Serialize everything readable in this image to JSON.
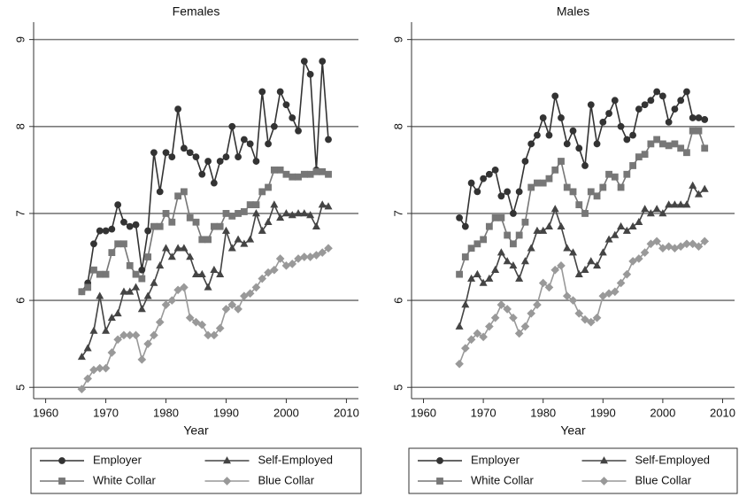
{
  "chart_data": [
    {
      "type": "line",
      "title": "Females",
      "xlabel": "Year",
      "x": [
        1966,
        1967,
        1968,
        1969,
        1970,
        1971,
        1972,
        1973,
        1974,
        1975,
        1976,
        1977,
        1978,
        1979,
        1980,
        1981,
        1982,
        1983,
        1984,
        1985,
        1986,
        1987,
        1988,
        1989,
        1990,
        1991,
        1992,
        1993,
        1994,
        1995,
        1996,
        1997,
        1998,
        1999,
        2000,
        2001,
        2002,
        2003,
        2004,
        2005,
        2006,
        2007
      ],
      "xlim": [
        1958,
        2012
      ],
      "xticks": [
        1960,
        1970,
        1980,
        1990,
        2000,
        2010
      ],
      "ylim": [
        4.87,
        9.2
      ],
      "yticks": [
        5,
        6,
        7,
        8,
        9
      ],
      "grid": true,
      "series": [
        {
          "name": "Employer",
          "color": "#333333",
          "marker": "circle",
          "values": [
            6.1,
            6.2,
            6.65,
            6.8,
            6.8,
            6.82,
            7.1,
            6.9,
            6.85,
            6.87,
            6.35,
            6.8,
            7.7,
            7.25,
            7.7,
            7.65,
            8.2,
            7.75,
            7.7,
            7.65,
            7.45,
            7.6,
            7.35,
            7.6,
            7.65,
            8.0,
            7.65,
            7.85,
            7.8,
            7.6,
            8.4,
            7.8,
            8.0,
            8.4,
            8.25,
            8.1,
            7.95,
            8.75,
            8.6,
            7.5,
            8.75,
            7.85
          ]
        },
        {
          "name": "Self-Employed",
          "color": "#444444",
          "marker": "triangle",
          "values": [
            5.35,
            5.45,
            5.65,
            6.05,
            5.65,
            5.8,
            5.85,
            6.1,
            6.1,
            6.15,
            5.9,
            6.05,
            6.2,
            6.4,
            6.6,
            6.5,
            6.6,
            6.6,
            6.5,
            6.3,
            6.3,
            6.15,
            6.35,
            6.3,
            6.8,
            6.6,
            6.7,
            6.65,
            6.7,
            7.0,
            6.8,
            6.9,
            7.1,
            6.95,
            7.0,
            6.98,
            7.0,
            7.0,
            6.98,
            6.85,
            7.1,
            7.08
          ]
        },
        {
          "name": "White Collar",
          "color": "#777777",
          "marker": "square",
          "values": [
            6.1,
            6.15,
            6.35,
            6.3,
            6.3,
            6.55,
            6.65,
            6.65,
            6.4,
            6.3,
            6.25,
            6.5,
            6.85,
            6.85,
            7.0,
            6.9,
            7.2,
            7.25,
            6.95,
            6.9,
            6.7,
            6.7,
            6.85,
            6.85,
            7.0,
            6.97,
            7.0,
            7.02,
            7.1,
            7.1,
            7.25,
            7.3,
            7.5,
            7.5,
            7.45,
            7.42,
            7.42,
            7.45,
            7.45,
            7.48,
            7.48,
            7.45
          ]
        },
        {
          "name": "Blue Collar",
          "color": "#999999",
          "marker": "diamond",
          "values": [
            4.98,
            5.1,
            5.2,
            5.22,
            5.22,
            5.4,
            5.55,
            5.6,
            5.6,
            5.6,
            5.32,
            5.5,
            5.6,
            5.75,
            5.95,
            6.0,
            6.12,
            6.15,
            5.8,
            5.75,
            5.72,
            5.6,
            5.6,
            5.68,
            5.9,
            5.95,
            5.9,
            6.05,
            6.08,
            6.15,
            6.25,
            6.32,
            6.35,
            6.48,
            6.4,
            6.42,
            6.48,
            6.5,
            6.5,
            6.52,
            6.55,
            6.6
          ]
        }
      ]
    },
    {
      "type": "line",
      "title": "Males",
      "xlabel": "Year",
      "x": [
        1966,
        1967,
        1968,
        1969,
        1970,
        1971,
        1972,
        1973,
        1974,
        1975,
        1976,
        1977,
        1978,
        1979,
        1980,
        1981,
        1982,
        1983,
        1984,
        1985,
        1986,
        1987,
        1988,
        1989,
        1990,
        1991,
        1992,
        1993,
        1994,
        1995,
        1996,
        1997,
        1998,
        1999,
        2000,
        2001,
        2002,
        2003,
        2004,
        2005,
        2006,
        2007
      ],
      "xlim": [
        1958,
        2012
      ],
      "xticks": [
        1960,
        1970,
        1980,
        1990,
        2000,
        2010
      ],
      "ylim": [
        4.87,
        9.2
      ],
      "yticks": [
        5,
        6,
        7,
        8,
        9
      ],
      "grid": true,
      "series": [
        {
          "name": "Employer",
          "color": "#333333",
          "marker": "circle",
          "values": [
            6.95,
            6.85,
            7.35,
            7.25,
            7.4,
            7.45,
            7.5,
            7.2,
            7.25,
            7.0,
            7.25,
            7.6,
            7.8,
            7.9,
            8.1,
            7.9,
            8.35,
            8.1,
            7.8,
            7.95,
            7.75,
            7.55,
            8.25,
            7.8,
            8.05,
            8.15,
            8.3,
            8.0,
            7.85,
            7.9,
            8.2,
            8.25,
            8.3,
            8.4,
            8.35,
            8.05,
            8.2,
            8.3,
            8.4,
            8.1,
            8.1,
            8.08
          ]
        },
        {
          "name": "Self-Employed",
          "color": "#444444",
          "marker": "triangle",
          "values": [
            5.7,
            5.95,
            6.25,
            6.3,
            6.2,
            6.25,
            6.35,
            6.55,
            6.45,
            6.4,
            6.25,
            6.45,
            6.6,
            6.8,
            6.8,
            6.85,
            7.05,
            6.85,
            6.6,
            6.55,
            6.3,
            6.35,
            6.45,
            6.4,
            6.55,
            6.7,
            6.75,
            6.85,
            6.8,
            6.85,
            6.9,
            7.05,
            7.0,
            7.05,
            7.0,
            7.1,
            7.1,
            7.1,
            7.1,
            7.32,
            7.22,
            7.28
          ]
        },
        {
          "name": "White Collar",
          "color": "#777777",
          "marker": "square",
          "values": [
            6.3,
            6.5,
            6.6,
            6.65,
            6.7,
            6.85,
            6.95,
            6.95,
            6.75,
            6.65,
            6.75,
            6.9,
            7.3,
            7.35,
            7.35,
            7.4,
            7.5,
            7.6,
            7.3,
            7.25,
            7.1,
            7.0,
            7.25,
            7.2,
            7.3,
            7.45,
            7.42,
            7.3,
            7.45,
            7.55,
            7.65,
            7.68,
            7.8,
            7.85,
            7.8,
            7.78,
            7.8,
            7.75,
            7.7,
            7.95,
            7.95,
            7.75
          ]
        },
        {
          "name": "Blue Collar",
          "color": "#999999",
          "marker": "diamond",
          "values": [
            5.27,
            5.45,
            5.55,
            5.62,
            5.58,
            5.7,
            5.8,
            5.95,
            5.9,
            5.8,
            5.62,
            5.7,
            5.85,
            5.95,
            6.2,
            6.15,
            6.35,
            6.4,
            6.05,
            6.0,
            5.85,
            5.78,
            5.75,
            5.8,
            6.05,
            6.08,
            6.1,
            6.2,
            6.3,
            6.45,
            6.48,
            6.55,
            6.65,
            6.68,
            6.6,
            6.62,
            6.6,
            6.62,
            6.65,
            6.65,
            6.62,
            6.68
          ]
        }
      ]
    }
  ]
}
